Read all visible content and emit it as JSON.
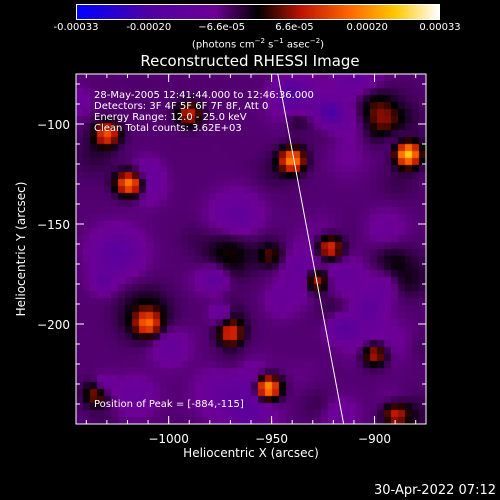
{
  "chart_data": {
    "type": "heatmap",
    "title": "Reconstructed RHESSI Image",
    "xlabel": "Heliocentric X (arcsec)",
    "ylabel": "Heliocentric Y (arcsec)",
    "xlim": [
      -1045,
      -875
    ],
    "ylim": [
      -250,
      -75
    ],
    "x_ticks": [
      -1000,
      -950,
      -900
    ],
    "y_ticks": [
      -100,
      -150,
      -200
    ],
    "x_tick_labels": [
      "−1000",
      "−950",
      "−900"
    ],
    "y_tick_labels": [
      "−100",
      "−150",
      "−200"
    ],
    "colorbar": {
      "min": -0.00033,
      "max": 0.00033,
      "tick_labels": [
        "-0.00033",
        "-0.00020",
        "−6.6e-05",
        "6.6e-05",
        "0.00020",
        "0.00033"
      ],
      "unit_text": "(photons cm",
      "unit_exp1": "−2",
      "unit_mid": " s",
      "unit_exp2": "−1",
      "unit_mid2": " asec",
      "unit_exp3": "−2",
      "unit_end": ")"
    },
    "annotations": [
      "28-May-2005 12:41:44.000 to 12:46:36.000",
      "Detectors: 3F 4F 5F 6F 7F 8F, Att 0",
      "Energy Range: 12.0 - 25.0 keV",
      "Clean    Total counts: 3.62E+03",
      "Position of Peak = [-884,-115]"
    ],
    "peak": [
      -884,
      -115
    ],
    "limb_line": [
      [
        -947,
        -75
      ],
      [
        -915,
        -250
      ]
    ],
    "sources": [
      {
        "x": -884,
        "y": -115,
        "amp": 1.0
      },
      {
        "x": -952,
        "y": -232,
        "amp": 0.95
      },
      {
        "x": -1018,
        "y": -130,
        "amp": 0.7
      },
      {
        "x": -1030,
        "y": -105,
        "amp": 0.6
      },
      {
        "x": -940,
        "y": -118,
        "amp": 0.75
      },
      {
        "x": -922,
        "y": -162,
        "amp": 0.55
      },
      {
        "x": -928,
        "y": -178,
        "amp": 0.6
      },
      {
        "x": -990,
        "y": -95,
        "amp": 0.45
      },
      {
        "x": -1010,
        "y": -200,
        "amp": 0.5
      },
      {
        "x": -970,
        "y": -205,
        "amp": 0.45
      },
      {
        "x": -900,
        "y": -215,
        "amp": 0.5
      },
      {
        "x": -890,
        "y": -245,
        "amp": 0.45
      },
      {
        "x": -1035,
        "y": -235,
        "amp": 0.4
      }
    ]
  },
  "footer": {
    "date": "30-Apr-2022 07:12"
  }
}
